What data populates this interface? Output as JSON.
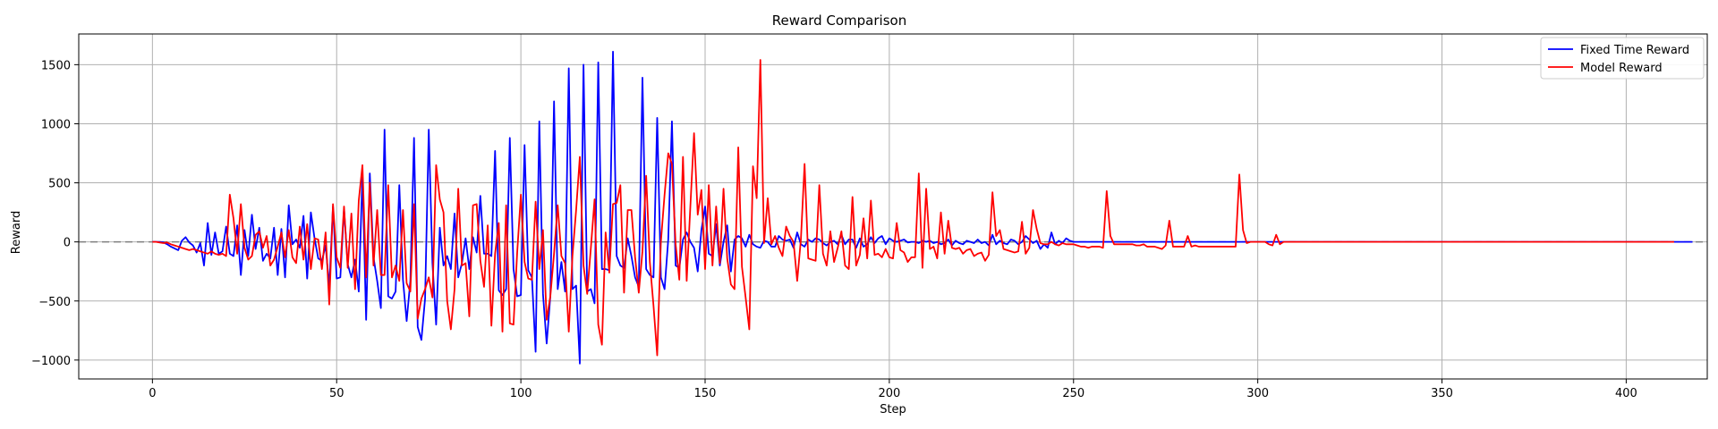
{
  "chart_data": {
    "type": "line",
    "title": "Reward Comparison",
    "xlabel": "Step",
    "ylabel": "Reward",
    "xlim": [
      -20,
      422
    ],
    "ylim": [
      -1160,
      1760
    ],
    "xticks": [
      0,
      50,
      100,
      150,
      200,
      250,
      300,
      350,
      400
    ],
    "yticks": [
      -1000,
      -500,
      0,
      500,
      1000,
      1500
    ],
    "grid": true,
    "legend_position": "top-right",
    "reference_line": {
      "y": 0,
      "style": "dashed",
      "color": "#808080"
    },
    "series": [
      {
        "name": "Fixed Time Reward",
        "color": "#0000ff",
        "x_start": 0,
        "values": [
          0,
          0,
          0,
          -5,
          -20,
          -40,
          -55,
          -70,
          10,
          40,
          -5,
          -30,
          -90,
          -10,
          -200,
          160,
          -110,
          80,
          -100,
          -80,
          130,
          -100,
          -120,
          140,
          -280,
          100,
          -120,
          230,
          -60,
          120,
          -160,
          -100,
          -140,
          120,
          -280,
          110,
          -300,
          310,
          -20,
          20,
          -50,
          220,
          -310,
          250,
          30,
          -140,
          -160,
          -30,
          -380,
          300,
          -310,
          -300,
          280,
          -190,
          -300,
          -150,
          -420,
          560,
          -660,
          580,
          -130,
          -330,
          -560,
          950,
          -460,
          -480,
          -420,
          480,
          -320,
          -670,
          -330,
          880,
          -720,
          -830,
          -480,
          950,
          -180,
          -700,
          120,
          -200,
          -120,
          -230,
          240,
          -300,
          -180,
          30,
          -230,
          40,
          -90,
          390,
          -100,
          -100,
          -120,
          770,
          -410,
          -450,
          -400,
          880,
          -230,
          -460,
          -450,
          820,
          -240,
          -300,
          -930,
          1020,
          -440,
          -860,
          -460,
          1190,
          -400,
          -170,
          -420,
          1470,
          -400,
          -370,
          -1030,
          1500,
          -420,
          -400,
          -520,
          1520,
          -230,
          -230,
          -240,
          1610,
          -120,
          -200,
          -220,
          30,
          -120,
          -300,
          -380,
          1390,
          -230,
          -280,
          -300,
          1050,
          -300,
          -400,
          20,
          1020,
          -200,
          -220,
          20,
          80,
          0,
          -50,
          -250,
          100,
          300,
          -100,
          -120,
          150,
          -200,
          0,
          140,
          -250,
          20,
          50,
          30,
          -40,
          60,
          -20,
          -40,
          -50,
          10,
          0,
          -40,
          -40,
          50,
          20,
          10,
          20,
          -50,
          80,
          -20,
          -40,
          20,
          0,
          30,
          20,
          -10,
          -30,
          0,
          10,
          -20,
          60,
          -20,
          20,
          20,
          -50,
          30,
          -40,
          -20,
          40,
          -10,
          30,
          50,
          -20,
          30,
          10,
          0,
          10,
          20,
          -5,
          0,
          0,
          -10,
          10,
          0,
          10,
          -10,
          0,
          -20,
          -10,
          20,
          -30,
          10,
          -10,
          -20,
          10,
          0,
          -10,
          20,
          -10,
          0,
          -30,
          60,
          -20,
          10,
          -10,
          -20,
          20,
          10,
          -20,
          0,
          50,
          20,
          -10,
          10,
          -60,
          -20,
          -50,
          80,
          -20,
          10,
          -10,
          30,
          10,
          0,
          0,
          0,
          0,
          0,
          0,
          0,
          0,
          0,
          0,
          0,
          0,
          0,
          0,
          0,
          0,
          0,
          0,
          0,
          0,
          0,
          0,
          0,
          0,
          0,
          0,
          0,
          0,
          0,
          0,
          0,
          0,
          0,
          0,
          0,
          0,
          0,
          0,
          0,
          0,
          0,
          0,
          0,
          0,
          0,
          0,
          0,
          0,
          0,
          0,
          0,
          0,
          0,
          0,
          0,
          0,
          0,
          0,
          0,
          0,
          0,
          0,
          0,
          0,
          0,
          0,
          0,
          0,
          0,
          0,
          0,
          0,
          0,
          0,
          0,
          0,
          0,
          0,
          0,
          0,
          0,
          0,
          0,
          0,
          0,
          0,
          0,
          0,
          0,
          0,
          0,
          0,
          0,
          0,
          0,
          0,
          0,
          0,
          0,
          0,
          0,
          0,
          0,
          0,
          0,
          0,
          0,
          0,
          0,
          0,
          0,
          0,
          0,
          0,
          0,
          0,
          0,
          0,
          0,
          0,
          0,
          0,
          0,
          0,
          0,
          0,
          0,
          0,
          0,
          0,
          0,
          0,
          0,
          0,
          0,
          0,
          0,
          0,
          0,
          0,
          0,
          0,
          0,
          0,
          0,
          0,
          0,
          0,
          0,
          0,
          0,
          0,
          0,
          0,
          0,
          0,
          0,
          0,
          0,
          0,
          0,
          0,
          0,
          0,
          0,
          0,
          0,
          0,
          0
        ]
      },
      {
        "name": "Model Reward",
        "color": "#ff0000",
        "x_start": 0,
        "values": [
          0,
          0,
          -5,
          -10,
          -5,
          -20,
          -30,
          -40,
          -50,
          -60,
          -70,
          -60,
          -70,
          -80,
          -90,
          -100,
          -80,
          -100,
          -110,
          -100,
          -120,
          400,
          200,
          -100,
          320,
          -50,
          -150,
          -120,
          60,
          90,
          -50,
          50,
          -200,
          -150,
          -40,
          80,
          -130,
          100,
          -130,
          -180,
          130,
          -150,
          150,
          -230,
          30,
          20,
          -230,
          80,
          -530,
          320,
          -130,
          -220,
          300,
          -220,
          240,
          -400,
          350,
          650,
          -300,
          500,
          -200,
          270,
          -280,
          -280,
          480,
          -300,
          -200,
          -330,
          270,
          -350,
          -420,
          320,
          -650,
          -480,
          -400,
          -300,
          -470,
          650,
          360,
          250,
          -500,
          -740,
          -400,
          450,
          -200,
          -180,
          -630,
          310,
          320,
          -160,
          -380,
          140,
          -710,
          -100,
          160,
          -760,
          310,
          -690,
          -700,
          -90,
          400,
          -170,
          -310,
          -320,
          340,
          -230,
          100,
          -660,
          -460,
          -100,
          310,
          -120,
          -180,
          -760,
          -120,
          270,
          720,
          -200,
          -440,
          -50,
          360,
          -700,
          -870,
          80,
          -260,
          320,
          330,
          480,
          -430,
          270,
          270,
          -130,
          -430,
          -80,
          560,
          -170,
          -540,
          -960,
          0,
          400,
          750,
          660,
          -20,
          -320,
          720,
          -330,
          300,
          920,
          230,
          440,
          -230,
          480,
          -200,
          300,
          -180,
          450,
          -140,
          -360,
          -400,
          800,
          -210,
          -470,
          -740,
          640,
          370,
          1540,
          -10,
          370,
          -20,
          50,
          -50,
          -120,
          130,
          50,
          0,
          -330,
          20,
          660,
          -140,
          -150,
          -160,
          480,
          -100,
          -200,
          90,
          -170,
          -50,
          90,
          -200,
          -230,
          380,
          -200,
          -110,
          200,
          -140,
          350,
          -110,
          -100,
          -130,
          -60,
          -130,
          -140,
          160,
          -70,
          -90,
          -170,
          -130,
          -130,
          580,
          -220,
          450,
          -60,
          -40,
          -140,
          250,
          -100,
          180,
          -50,
          -60,
          -50,
          -100,
          -70,
          -60,
          -120,
          -100,
          -90,
          -160,
          -110,
          420,
          50,
          100,
          -60,
          -70,
          -80,
          -90,
          -80,
          170,
          -100,
          -50,
          270,
          110,
          -10,
          -20,
          -20,
          0,
          -20,
          -30,
          -10,
          -20,
          -20,
          -20,
          -30,
          -40,
          -40,
          -50,
          -40,
          -40,
          -40,
          -50,
          430,
          50,
          -20,
          -20,
          -20,
          -20,
          -20,
          -20,
          -30,
          -30,
          -20,
          -40,
          -40,
          -40,
          -50,
          -60,
          -30,
          180,
          -40,
          -40,
          -40,
          -40,
          50,
          -40,
          -30,
          -40,
          -40,
          -40,
          -40,
          -40,
          -40,
          -40,
          -40,
          -40,
          -40,
          -40,
          570,
          100,
          -10,
          0,
          0,
          0,
          0,
          0,
          -20,
          -30,
          60,
          -20,
          0,
          0,
          0,
          0,
          0,
          0,
          0,
          0,
          0,
          0,
          0,
          0,
          0,
          0,
          0,
          0,
          0,
          0,
          0,
          0,
          0,
          0,
          0,
          0,
          0,
          0,
          0,
          0,
          0,
          0,
          0,
          0,
          0,
          0,
          0,
          0,
          0,
          0,
          0,
          0,
          0,
          0,
          0,
          0,
          0,
          0,
          0,
          0,
          0,
          0,
          0,
          0,
          0,
          0,
          0,
          0,
          0,
          0,
          0,
          0,
          0,
          0,
          0,
          0,
          0,
          0,
          0,
          0,
          0,
          0,
          0,
          0,
          0,
          0,
          0,
          0,
          0,
          0,
          0,
          0,
          0,
          0,
          0,
          0,
          0,
          0,
          0,
          0,
          0,
          0,
          0,
          0,
          0,
          0,
          0,
          0,
          0,
          0,
          0,
          0,
          0,
          0,
          0,
          0,
          0,
          0,
          0
        ]
      }
    ]
  }
}
